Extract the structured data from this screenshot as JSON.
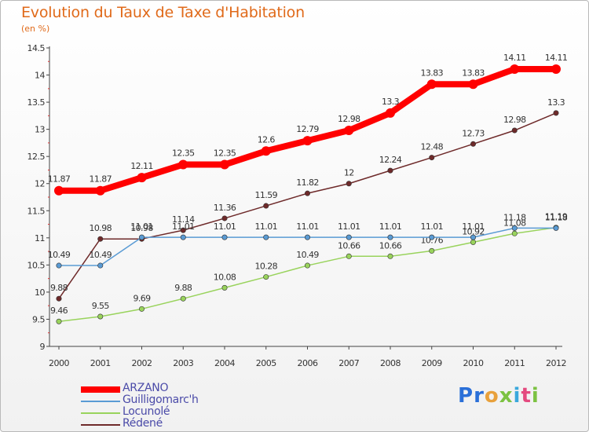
{
  "title": "Evolution du Taux de Taxe d'Habitation",
  "unit": "(en %)",
  "logo": {
    "text": "Proxiti",
    "letter_colors": [
      "#2a6fd8",
      "#2a6fd8",
      "#e8a13c",
      "#7cc242",
      "#3aa8dc",
      "#e44a7f",
      "#7cc242"
    ]
  },
  "chart_data": {
    "type": "line",
    "categories": [
      "2000",
      "2001",
      "2002",
      "2003",
      "2004",
      "2005",
      "2006",
      "2007",
      "2008",
      "2009",
      "2010",
      "2011",
      "2012"
    ],
    "ylim": [
      9,
      14.5
    ],
    "yticks": [
      "9",
      "9.5",
      "10",
      "10.5",
      "11",
      "11.5",
      "12",
      "12.5",
      "13",
      "13.5",
      "14",
      "14.5"
    ],
    "grid": false,
    "legend_position": "bottom-left",
    "series": [
      {
        "name": "ARZANO",
        "color": "#ff0000",
        "values": [
          11.87,
          11.87,
          12.11,
          12.35,
          12.35,
          12.6,
          12.79,
          12.98,
          13.3,
          13.83,
          13.83,
          14.11,
          14.11
        ],
        "labels": [
          "11.87",
          "11.87",
          "12.11",
          "12.35",
          "12.35",
          "12.6",
          "12.79",
          "12.98",
          "13.3",
          "13.83",
          "13.83",
          "14.11",
          "14.11"
        ]
      },
      {
        "name": "Guilligomarc'h",
        "color": "#5a9bd4",
        "values": [
          10.49,
          10.49,
          11.01,
          11.01,
          11.01,
          11.01,
          11.01,
          11.01,
          11.01,
          11.01,
          11.01,
          11.18,
          11.18
        ],
        "labels": [
          "10.49",
          "10.49",
          "11.01",
          "11.01",
          "11.01",
          "11.01",
          "11.01",
          "11.01",
          "11.01",
          "11.01",
          "11.01",
          "11.18",
          "11.18"
        ]
      },
      {
        "name": "Locunolé",
        "color": "#99d35c",
        "values": [
          9.46,
          9.55,
          9.69,
          9.88,
          10.08,
          10.28,
          10.49,
          10.66,
          10.66,
          10.76,
          10.92,
          11.08,
          11.19
        ],
        "labels": [
          "9.46",
          "9.55",
          "9.69",
          "9.88",
          "10.08",
          "10.28",
          "10.49",
          "10.66",
          "10.66",
          "10.76",
          "10.92",
          "11.08",
          "11.19"
        ]
      },
      {
        "name": "Rédené",
        "color": "#6e2a2a",
        "values": [
          9.88,
          10.98,
          10.98,
          11.14,
          11.36,
          11.59,
          11.82,
          12,
          12.24,
          12.48,
          12.73,
          12.98,
          13.3
        ],
        "labels": [
          "9.88",
          "10.98",
          "10.98",
          "11.14",
          "11.36",
          "11.59",
          "11.82",
          "12",
          "12.24",
          "12.48",
          "12.73",
          "12.98",
          "13.3"
        ]
      }
    ]
  }
}
